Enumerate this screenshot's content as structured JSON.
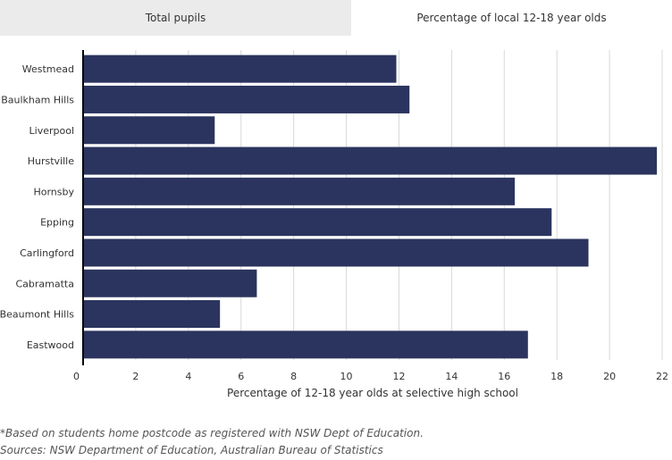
{
  "tabs": [
    {
      "label": "Total pupils",
      "active": false
    },
    {
      "label": "Percentage of local 12-18 year olds",
      "active": true
    }
  ],
  "colors": {
    "bar": "#2b345e",
    "grid": "#d8d8d8",
    "axis": "#000000",
    "inactive_tab": "#ebebeb"
  },
  "chart_data": {
    "type": "bar",
    "orientation": "horizontal",
    "categories": [
      "Westmead",
      "Baulkham Hills",
      "Liverpool",
      "Hurstville",
      "Hornsby",
      "Epping",
      "Carlingford",
      "Cabramatta",
      "Beaumont Hills",
      "Eastwood"
    ],
    "values": [
      11.9,
      12.4,
      5.0,
      21.8,
      16.4,
      17.8,
      19.2,
      6.6,
      5.2,
      16.9
    ],
    "xlabel": "Percentage of 12-18 year olds at selective high school",
    "ylabel": "",
    "xlim": [
      0,
      22
    ],
    "xticks": [
      0,
      2,
      4,
      6,
      8,
      10,
      12,
      14,
      16,
      18,
      20,
      22
    ],
    "grid": true
  },
  "footnotes": {
    "note": "*Based on students home postcode as registered with NSW Dept of Education.",
    "sources": "Sources: NSW Department of Education, Australian Bureau of Statistics"
  }
}
